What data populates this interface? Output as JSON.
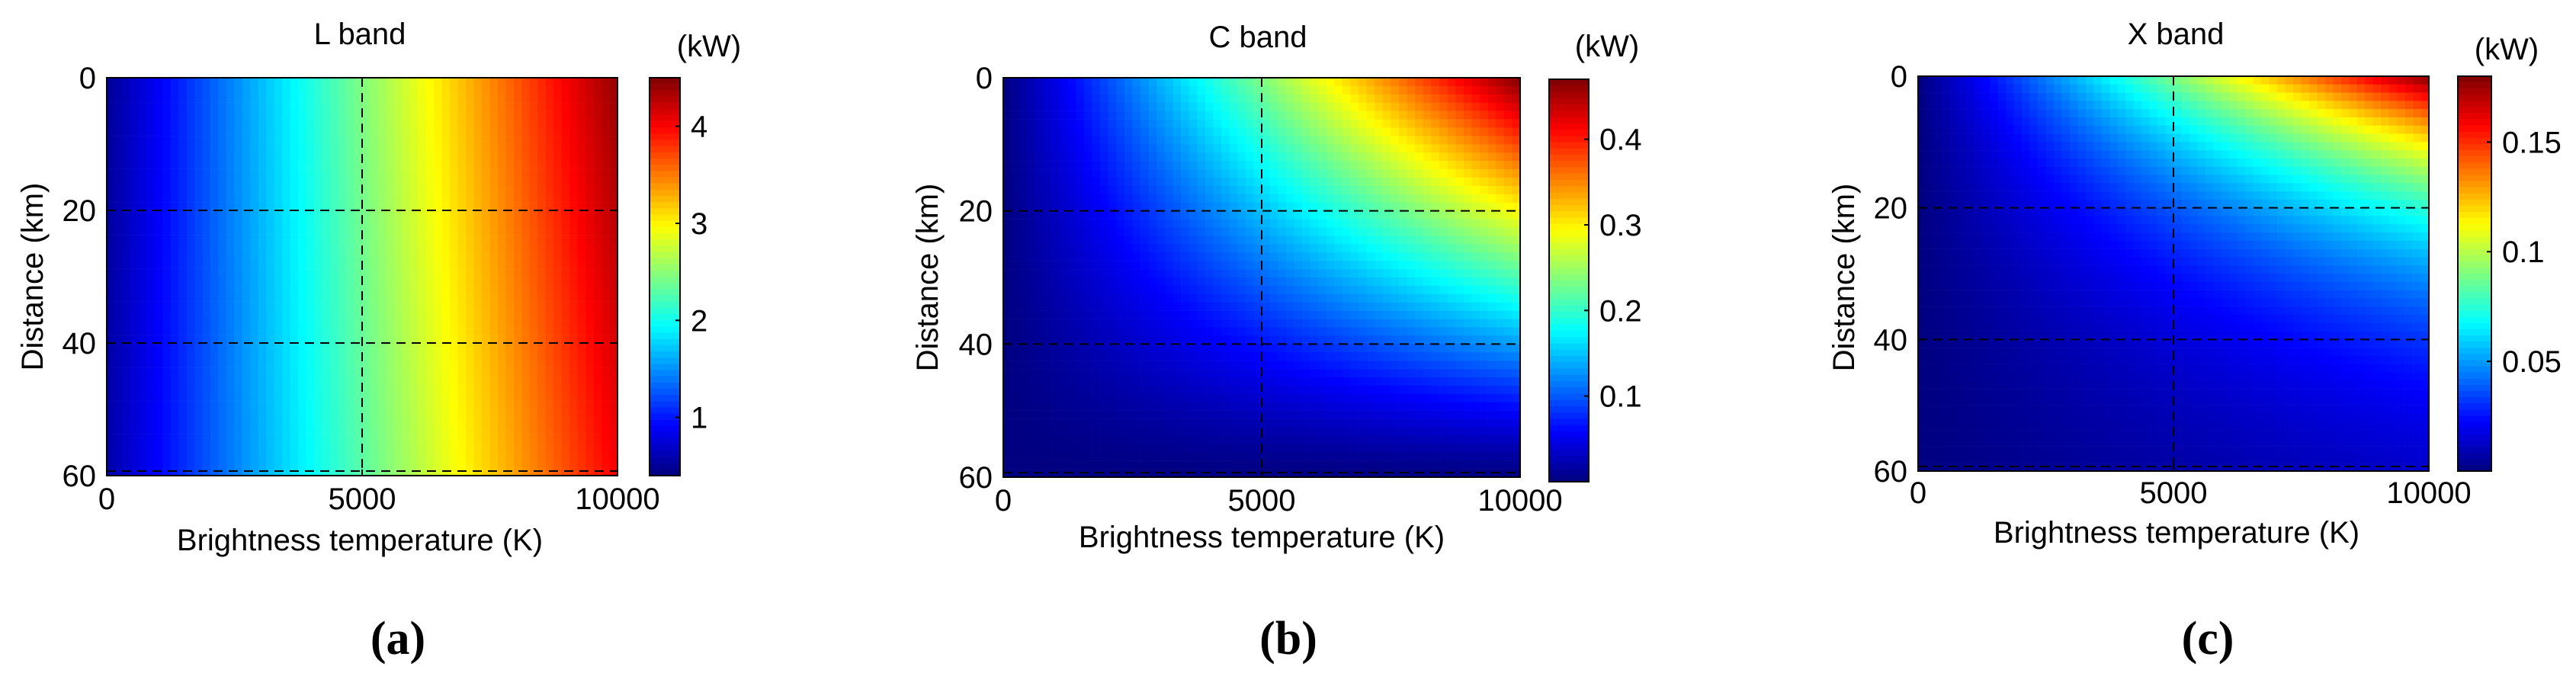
{
  "colors": {
    "colormap": "jet",
    "gridline": "#000000",
    "background": "#ffffff"
  },
  "chart_data": [
    {
      "type": "heatmap",
      "title": "L band",
      "xlabel": "Brightness temperature (K)",
      "ylabel": "Distance (km)",
      "xlim": [
        0,
        10000
      ],
      "ylim": [
        0,
        60
      ],
      "y_direction": "reversed",
      "xticks": [
        "0",
        "5000",
        "10000"
      ],
      "xtick_values": [
        0,
        5000,
        10000
      ],
      "yticks": [
        "0",
        "20",
        "40",
        "60"
      ],
      "ytick_values": [
        0,
        20,
        40,
        60
      ],
      "grid_dashed_x": [
        5000
      ],
      "grid_dashed_y": [
        20,
        40,
        60
      ],
      "colorbar_unit": "(kW)",
      "colorbar_range": [
        0.4,
        4.5
      ],
      "colorbar_ticks": [
        "1",
        "2",
        "3",
        "4"
      ],
      "colorbar_tick_values": [
        1,
        2,
        3,
        4
      ],
      "model": "value increases mainly with brightness temperature, slight distance dependence",
      "max_value_at_10000K_0km": 4.5,
      "max_value_at_10000K_60km": 4.3,
      "sublabel": "(a)"
    },
    {
      "type": "heatmap",
      "title": "C band",
      "xlabel": "Brightness temperature (K)",
      "ylabel": "Distance (km)",
      "xlim": [
        0,
        10000
      ],
      "ylim": [
        0,
        60
      ],
      "y_direction": "reversed",
      "xticks": [
        "0",
        "5000",
        "10000"
      ],
      "xtick_values": [
        0,
        5000,
        10000
      ],
      "yticks": [
        "0",
        "20",
        "40",
        "60"
      ],
      "ytick_values": [
        0,
        20,
        40,
        60
      ],
      "grid_dashed_x": [
        5000
      ],
      "grid_dashed_y": [
        20,
        40,
        60
      ],
      "colorbar_unit": "(kW)",
      "colorbar_range": [
        0.0,
        0.47
      ],
      "colorbar_ticks": [
        "0.1",
        "0.2",
        "0.3",
        "0.4"
      ],
      "colorbar_tick_values": [
        0.1,
        0.2,
        0.3,
        0.4
      ],
      "model": "value increases with brightness temperature and decreases with distance",
      "max_value_at_10000K_0km": 0.47,
      "max_value_at_10000K_60km": 0.13,
      "sublabel": "(b)"
    },
    {
      "type": "heatmap",
      "title": "X band",
      "xlabel": "Brightness temperature (K)",
      "ylabel": "Distance (km)",
      "xlim": [
        0,
        10000
      ],
      "ylim": [
        0,
        60
      ],
      "y_direction": "reversed",
      "xticks": [
        "0",
        "5000",
        "10000"
      ],
      "xtick_values": [
        0,
        5000,
        10000
      ],
      "yticks": [
        "0",
        "20",
        "40",
        "60"
      ],
      "ytick_values": [
        0,
        20,
        40,
        60
      ],
      "grid_dashed_x": [
        5000
      ],
      "grid_dashed_y": [
        20,
        40,
        60
      ],
      "colorbar_unit": "(kW)",
      "colorbar_range": [
        0.0,
        0.18
      ],
      "colorbar_ticks": [
        "0.05",
        "0.1",
        "0.15"
      ],
      "colorbar_tick_values": [
        0.05,
        0.1,
        0.15
      ],
      "model": "value increases with brightness temperature and decreases strongly with distance",
      "max_value_at_10000K_0km": 0.18,
      "max_value_at_10000K_60km": 0.015,
      "sublabel": "(c)"
    }
  ]
}
